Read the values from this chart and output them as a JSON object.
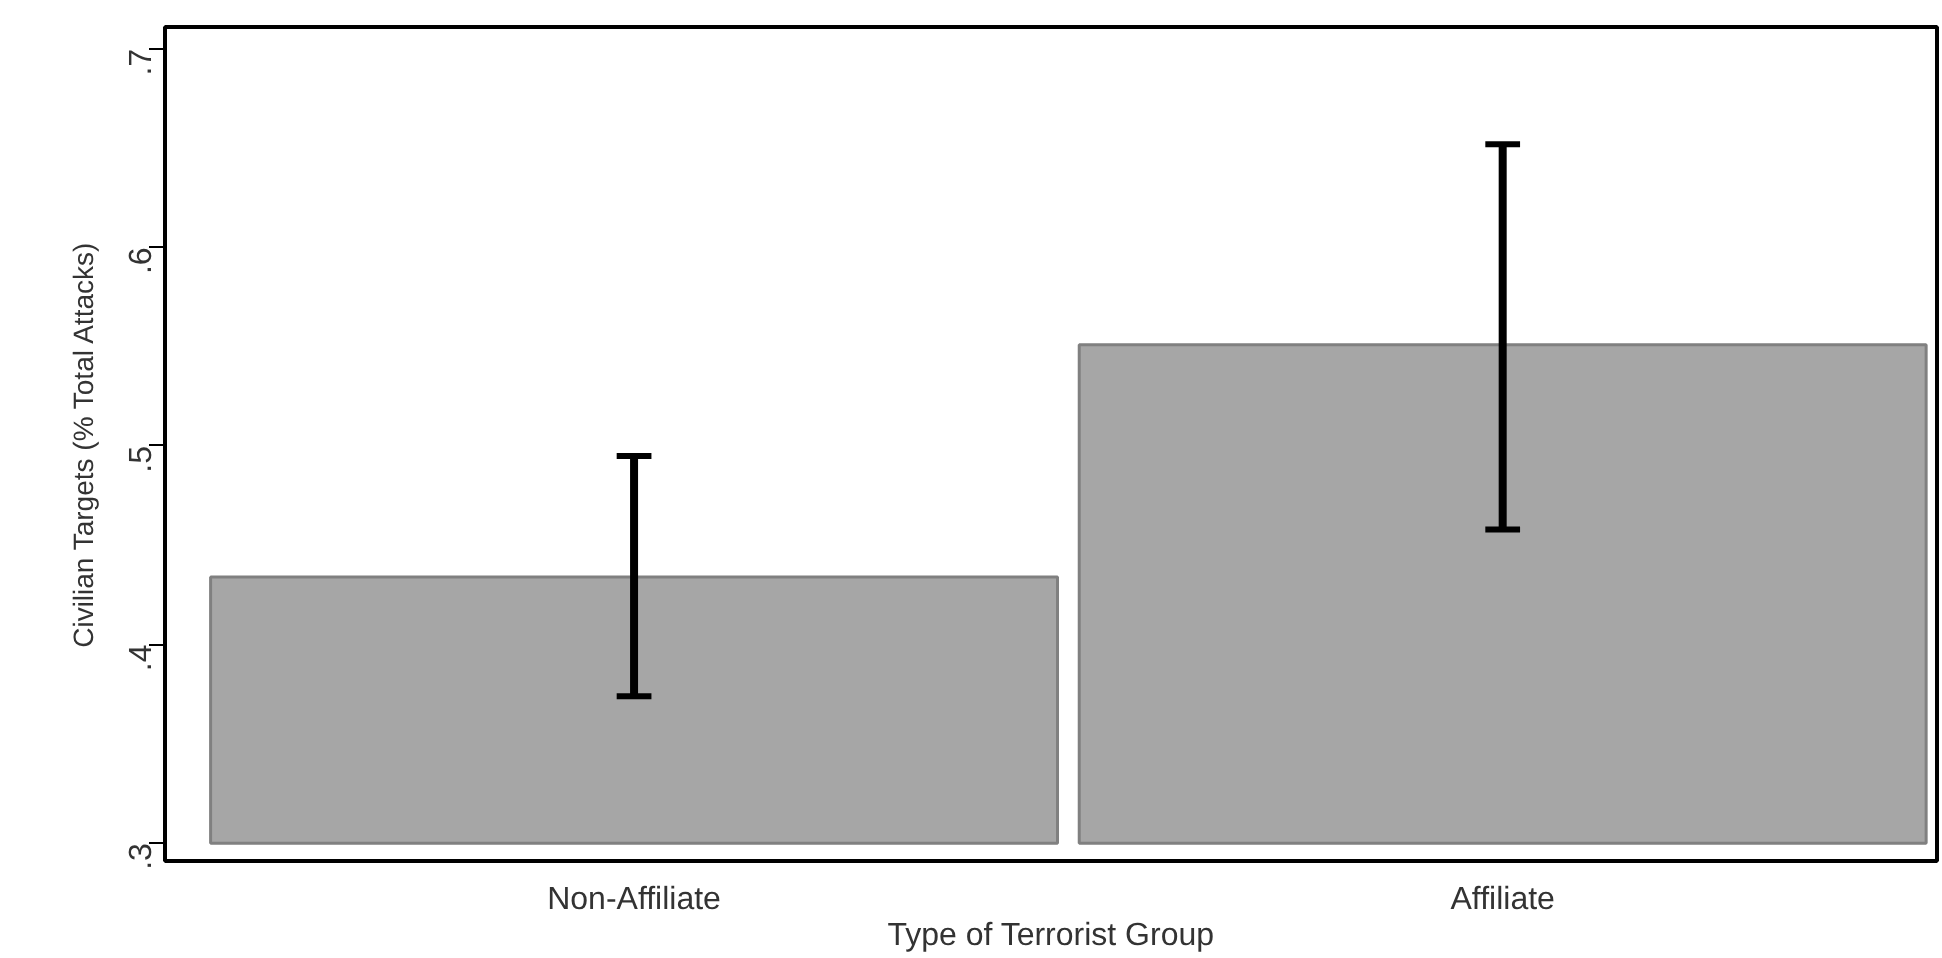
{
  "chart_data": {
    "type": "bar",
    "xlabel": "Type of Terrorist Group",
    "ylabel": "Civilian Targets (% Total Attacks)",
    "categories": [
      "Non-Affiliate",
      "Affiliate"
    ],
    "base": [
      0.3,
      0.3
    ],
    "values": [
      0.134,
      0.251
    ],
    "errors": [
      [
        0.374,
        0.495
      ],
      [
        0.458,
        0.652
      ]
    ],
    "color": "#a6a6a6",
    "ylim": [
      0.291,
      0.711
    ],
    "yticks": [
      {
        "value": 0.3,
        "label": ".3"
      },
      {
        "value": 0.4,
        "label": ".4"
      },
      {
        "value": 0.5,
        "label": ".5"
      },
      {
        "value": 0.6,
        "label": ".6"
      },
      {
        "value": 0.7,
        "label": ".7"
      }
    ],
    "grid": false
  }
}
